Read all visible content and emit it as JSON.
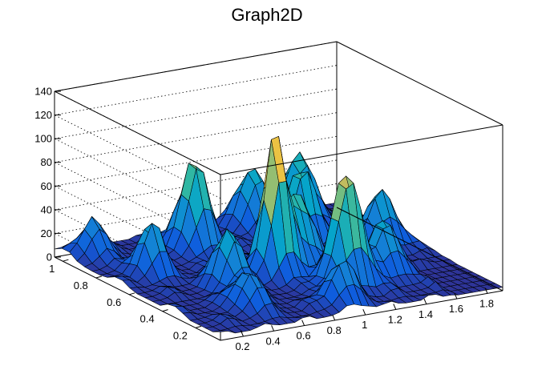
{
  "chart_data": {
    "type": "surface",
    "title": "Graph2D",
    "x_ticks": [
      "0.2",
      "0.4",
      "0.6",
      "0.8",
      "1",
      "1.2",
      "1.4",
      "1.6",
      "1.8"
    ],
    "y_ticks": [
      "0.2",
      "0.4",
      "0.6",
      "0.8",
      "1"
    ],
    "z_ticks": [
      "0",
      "20",
      "40",
      "60",
      "80",
      "100",
      "120",
      "140"
    ],
    "xlim": [
      0.05,
      1.9
    ],
    "ylim": [
      0.05,
      1.05
    ],
    "zlim": [
      0,
      140
    ],
    "grid": true,
    "colormap": [
      "#352a87",
      "#0f5cdd",
      "#1481d6",
      "#06a4ca",
      "#2eb7a4",
      "#87bf77",
      "#d1bb59",
      "#fec832",
      "#f9fb0e"
    ],
    "peaks": [
      {
        "x": 0.9,
        "y": 0.5,
        "z": 125
      },
      {
        "x": 0.75,
        "y": 0.85,
        "z": 78
      },
      {
        "x": 1.15,
        "y": 0.3,
        "z": 100
      },
      {
        "x": 0.55,
        "y": 0.45,
        "z": 55
      },
      {
        "x": 1.35,
        "y": 0.75,
        "z": 70
      },
      {
        "x": 1.1,
        "y": 0.55,
        "z": 65
      },
      {
        "x": 0.3,
        "y": 0.7,
        "z": 48
      },
      {
        "x": 1.55,
        "y": 0.95,
        "z": 62
      },
      {
        "x": 1.7,
        "y": 0.6,
        "z": 50
      },
      {
        "x": 0.45,
        "y": 0.25,
        "z": 35
      },
      {
        "x": 0.95,
        "y": 0.15,
        "z": 40
      },
      {
        "x": 1.45,
        "y": 0.35,
        "z": 45
      },
      {
        "x": 0.2,
        "y": 0.95,
        "z": 38
      },
      {
        "x": 1.25,
        "y": 0.95,
        "z": 55
      }
    ]
  }
}
